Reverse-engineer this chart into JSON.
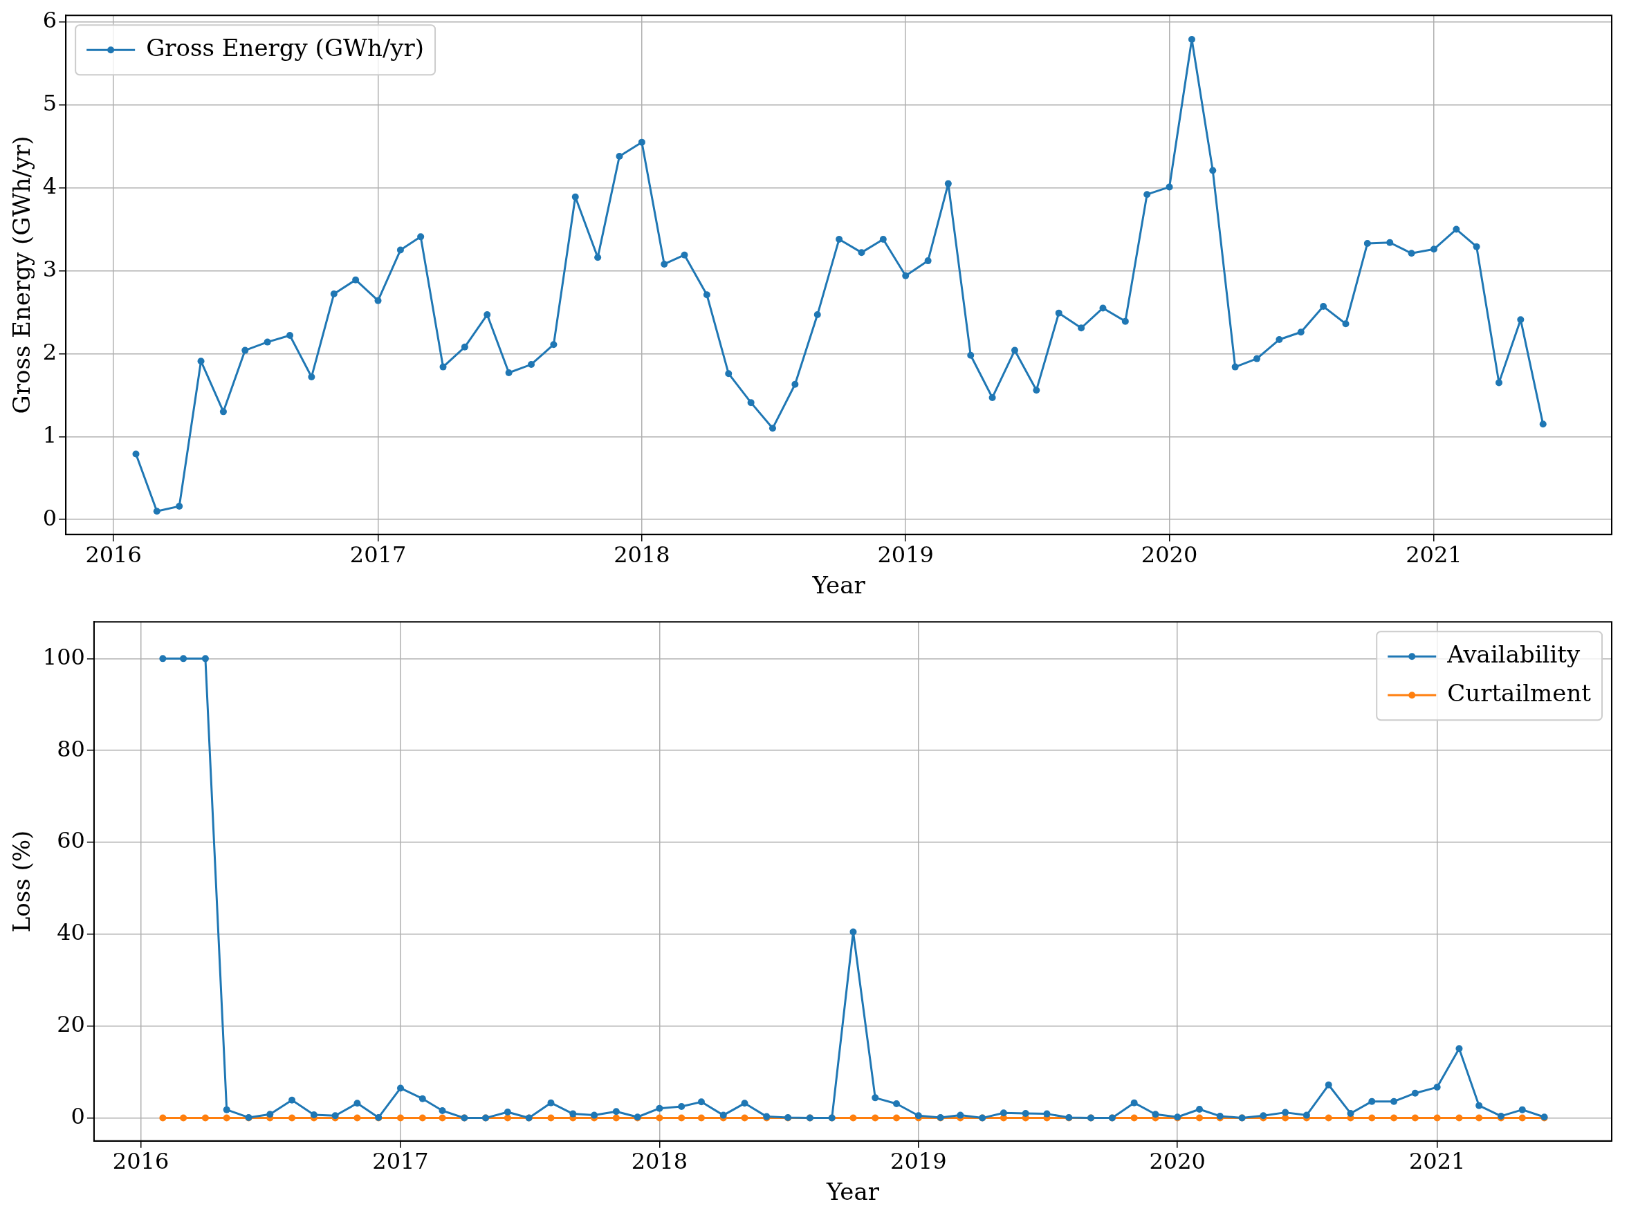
{
  "chart_data": [
    {
      "type": "line",
      "xlabel": "Year",
      "ylabel": "Gross Energy (GWh/yr)",
      "x": [
        "2016-02",
        "2016-03",
        "2016-04",
        "2016-05",
        "2016-06",
        "2016-07",
        "2016-08",
        "2016-09",
        "2016-10",
        "2016-11",
        "2016-12",
        "2017-01",
        "2017-02",
        "2017-03",
        "2017-04",
        "2017-05",
        "2017-06",
        "2017-07",
        "2017-08",
        "2017-09",
        "2017-10",
        "2017-11",
        "2017-12",
        "2018-01",
        "2018-02",
        "2018-03",
        "2018-04",
        "2018-05",
        "2018-06",
        "2018-07",
        "2018-08",
        "2018-09",
        "2018-10",
        "2018-11",
        "2018-12",
        "2019-01",
        "2019-02",
        "2019-03",
        "2019-04",
        "2019-05",
        "2019-06",
        "2019-07",
        "2019-08",
        "2019-09",
        "2019-10",
        "2019-11",
        "2019-12",
        "2020-01",
        "2020-02",
        "2020-03",
        "2020-04",
        "2020-05",
        "2020-06",
        "2020-07",
        "2020-08",
        "2020-09",
        "2020-10",
        "2020-11",
        "2020-12",
        "2021-01",
        "2021-02",
        "2021-03",
        "2021-04",
        "2021-05",
        "2021-06"
      ],
      "series": [
        {
          "name": "Gross Energy (GWh/yr)",
          "color": "#1f77b4",
          "values": [
            0.79,
            0.1,
            0.16,
            1.91,
            1.3,
            2.04,
            2.14,
            2.22,
            1.72,
            2.72,
            2.89,
            2.64,
            3.25,
            3.41,
            1.84,
            2.08,
            2.47,
            1.77,
            1.87,
            2.11,
            3.89,
            3.16,
            4.38,
            4.55,
            3.08,
            3.19,
            2.71,
            1.76,
            1.41,
            1.1,
            1.63,
            2.47,
            3.38,
            3.22,
            3.38,
            2.94,
            3.12,
            4.05,
            1.98,
            1.47,
            2.04,
            1.56,
            2.49,
            2.31,
            2.55,
            2.39,
            3.92,
            4.01,
            5.79,
            4.21,
            1.84,
            1.94,
            2.17,
            2.26,
            2.57,
            2.36,
            3.33,
            3.34,
            3.21,
            3.26,
            3.5,
            3.29,
            1.65,
            2.41,
            1.15
          ]
        }
      ],
      "xlim": [
        "2015-10-27",
        "2021-09-04"
      ],
      "xticks": [
        "2016",
        "2017",
        "2018",
        "2019",
        "2020",
        "2021"
      ],
      "ylim": [
        -0.18,
        6.08
      ],
      "yticks": [
        0,
        1,
        2,
        3,
        4,
        5,
        6
      ],
      "grid": true,
      "legend": "top left",
      "marker": "circle"
    },
    {
      "type": "line",
      "xlabel": "Year",
      "ylabel": "Loss (%)",
      "x": [
        "2016-02",
        "2016-03",
        "2016-04",
        "2016-05",
        "2016-06",
        "2016-07",
        "2016-08",
        "2016-09",
        "2016-10",
        "2016-11",
        "2016-12",
        "2017-01",
        "2017-02",
        "2017-03",
        "2017-04",
        "2017-05",
        "2017-06",
        "2017-07",
        "2017-08",
        "2017-09",
        "2017-10",
        "2017-11",
        "2017-12",
        "2018-01",
        "2018-02",
        "2018-03",
        "2018-04",
        "2018-05",
        "2018-06",
        "2018-07",
        "2018-08",
        "2018-09",
        "2018-10",
        "2018-11",
        "2018-12",
        "2019-01",
        "2019-02",
        "2019-03",
        "2019-04",
        "2019-05",
        "2019-06",
        "2019-07",
        "2019-08",
        "2019-09",
        "2019-10",
        "2019-11",
        "2019-12",
        "2020-01",
        "2020-02",
        "2020-03",
        "2020-04",
        "2020-05",
        "2020-06",
        "2020-07",
        "2020-08",
        "2020-09",
        "2020-10",
        "2020-11",
        "2020-12",
        "2021-01",
        "2021-02",
        "2021-03",
        "2021-04",
        "2021-05",
        "2021-06"
      ],
      "series": [
        {
          "name": "Availability",
          "color": "#1f77b4",
          "values": [
            100,
            100,
            100,
            1.8,
            0.1,
            0.8,
            3.9,
            0.7,
            0.5,
            3.2,
            0.1,
            6.5,
            4.2,
            1.6,
            0,
            0,
            1.3,
            0,
            3.3,
            0.9,
            0.6,
            1.4,
            0.2,
            2.1,
            2.5,
            3.5,
            0.6,
            3.2,
            0.3,
            0.1,
            0,
            0,
            40.5,
            4.4,
            3.1,
            0.5,
            0.1,
            0.6,
            0,
            1.1,
            1,
            0.9,
            0.1,
            0,
            0,
            3.3,
            0.8,
            0.2,
            1.9,
            0.4,
            0,
            0.5,
            1.2,
            0.6,
            7.2,
            1,
            3.6,
            3.6,
            5.4,
            6.7,
            15.1,
            2.7,
            0.4,
            1.8,
            0.2
          ]
        },
        {
          "name": "Curtailment",
          "color": "#ff7f0e",
          "values": [
            0,
            0,
            0,
            0,
            0,
            0,
            0,
            0,
            0,
            0,
            0,
            0,
            0,
            0,
            0,
            0,
            0,
            0,
            0,
            0,
            0,
            0,
            0,
            0,
            0,
            0,
            0,
            0,
            0,
            0,
            0,
            0,
            0,
            0,
            0,
            0,
            0,
            0,
            0,
            0,
            0,
            0,
            0,
            0,
            0,
            0,
            0,
            0,
            0,
            0,
            0,
            0,
            0,
            0,
            0,
            0,
            0,
            0,
            0,
            0,
            0,
            0,
            0,
            0,
            0
          ]
        }
      ],
      "xlim": [
        "2015-10-27",
        "2021-09-04"
      ],
      "xticks": [
        "2016",
        "2017",
        "2018",
        "2019",
        "2020",
        "2021"
      ],
      "ylim": [
        -5,
        108
      ],
      "yticks": [
        0,
        20,
        40,
        60,
        80,
        100
      ],
      "grid": true,
      "legend": "top right",
      "marker": "circle"
    }
  ]
}
